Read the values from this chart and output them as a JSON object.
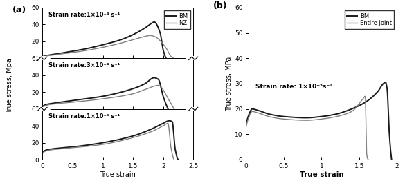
{
  "panel_a_label": "(a)",
  "panel_b_label": "(b)",
  "ylabel_a": "True stress, Mpa",
  "ylabel_b": "True stress, MPa",
  "xlabel": "True strain",
  "ylim": [
    0,
    60
  ],
  "xlim_a": [
    0.0,
    2.5
  ],
  "xlim_b": [
    0.0,
    2.0
  ],
  "yticks_a": [
    0,
    20,
    40,
    60
  ],
  "yticks_b": [
    0,
    10,
    20,
    30,
    40,
    50,
    60
  ],
  "xticks_a": [
    0.0,
    0.5,
    1.0,
    1.5,
    2.0,
    2.5
  ],
  "xticks_b": [
    0.0,
    0.5,
    1.0,
    1.5,
    2.0
  ],
  "subplot_titles": [
    "Strain rate:1×10⁻⁴ s⁻¹",
    "Strain rate:3×10⁻⁴ s⁻¹",
    "Strain rate:1×10⁻⁵ s⁻¹"
  ],
  "panel_b_title": "Strain rate: 1×10⁻⁵s⁻¹",
  "bm_color": "#1a1a1a",
  "nz_color": "#808080",
  "entire_joint_color": "#808080",
  "line_width": 1.0,
  "bg_color": "#f0f0f0"
}
